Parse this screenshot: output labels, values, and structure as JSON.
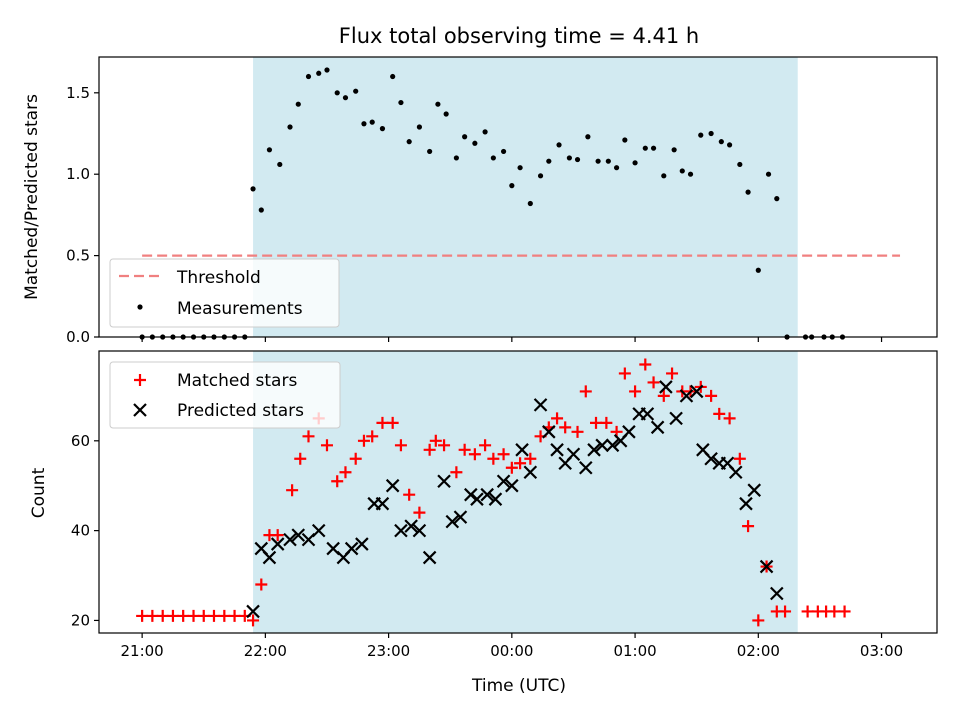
{
  "chart_data": {
    "type": "scatter",
    "title": "Flux total observing time = 4.41 h",
    "xlabel": "Time (UTC)",
    "x_unit": "hours since 21:00 UTC (axis ticks labeled as clock times)",
    "xlim": [
      -0.35,
      6.45
    ],
    "x_ticks": [
      {
        "x": 0,
        "label": "21:00"
      },
      {
        "x": 1,
        "label": "22:00"
      },
      {
        "x": 2,
        "label": "23:00"
      },
      {
        "x": 3,
        "label": "00:00"
      },
      {
        "x": 4,
        "label": "01:00"
      },
      {
        "x": 5,
        "label": "02:00"
      },
      {
        "x": 6,
        "label": "03:00"
      }
    ],
    "shaded_region": {
      "x_start": 0.9,
      "x_end": 5.32,
      "color": "#add8e6"
    },
    "panels": [
      {
        "ylabel": "Matched/Predicted stars",
        "ylim": [
          0,
          1.72
        ],
        "y_ticks": [
          0.0,
          0.5,
          1.0,
          1.5
        ],
        "y_tick_labels": [
          "0.0",
          "0.5",
          "1.0",
          "1.5"
        ],
        "legend": {
          "position": "lower-left",
          "entries": [
            "Threshold",
            "Measurements"
          ]
        },
        "threshold": {
          "name": "Threshold",
          "y": 0.5,
          "x_range": [
            0,
            6.15
          ],
          "color": "#f08080"
        },
        "series": [
          {
            "name": "Measurements",
            "marker": "dot",
            "color": "#000000",
            "points": [
              [
                0,
                0
              ],
              [
                0.083,
                0
              ],
              [
                0.167,
                0
              ],
              [
                0.25,
                0
              ],
              [
                0.333,
                0
              ],
              [
                0.417,
                0
              ],
              [
                0.5,
                0
              ],
              [
                0.583,
                0
              ],
              [
                0.667,
                0
              ],
              [
                0.75,
                0
              ],
              [
                0.833,
                0
              ],
              [
                0.9,
                0.91
              ],
              [
                0.967,
                0.78
              ],
              [
                1.033,
                1.15
              ],
              [
                1.117,
                1.06
              ],
              [
                1.2,
                1.29
              ],
              [
                1.267,
                1.43
              ],
              [
                1.35,
                1.6
              ],
              [
                1.433,
                1.62
              ],
              [
                1.5,
                1.64
              ],
              [
                1.583,
                1.5
              ],
              [
                1.65,
                1.47
              ],
              [
                1.733,
                1.51
              ],
              [
                1.8,
                1.31
              ],
              [
                1.867,
                1.32
              ],
              [
                1.95,
                1.28
              ],
              [
                2.033,
                1.6
              ],
              [
                2.1,
                1.44
              ],
              [
                2.167,
                1.2
              ],
              [
                2.25,
                1.29
              ],
              [
                2.333,
                1.14
              ],
              [
                2.4,
                1.43
              ],
              [
                2.467,
                1.37
              ],
              [
                2.55,
                1.1
              ],
              [
                2.617,
                1.23
              ],
              [
                2.7,
                1.19
              ],
              [
                2.783,
                1.26
              ],
              [
                2.85,
                1.1
              ],
              [
                2.933,
                1.14
              ],
              [
                3.0,
                0.93
              ],
              [
                3.067,
                1.04
              ],
              [
                3.15,
                0.82
              ],
              [
                3.233,
                0.99
              ],
              [
                3.3,
                1.08
              ],
              [
                3.383,
                1.18
              ],
              [
                3.467,
                1.1
              ],
              [
                3.533,
                1.09
              ],
              [
                3.617,
                1.23
              ],
              [
                3.7,
                1.08
              ],
              [
                3.783,
                1.08
              ],
              [
                3.85,
                1.04
              ],
              [
                3.917,
                1.21
              ],
              [
                4.0,
                1.07
              ],
              [
                4.083,
                1.16
              ],
              [
                4.15,
                1.16
              ],
              [
                4.233,
                0.99
              ],
              [
                4.317,
                1.15
              ],
              [
                4.383,
                1.02
              ],
              [
                4.45,
                1.0
              ],
              [
                4.533,
                1.24
              ],
              [
                4.617,
                1.25
              ],
              [
                4.7,
                1.2
              ],
              [
                4.767,
                1.18
              ],
              [
                4.85,
                1.06
              ],
              [
                4.917,
                0.89
              ],
              [
                5.0,
                0.41
              ],
              [
                5.083,
                1.0
              ],
              [
                5.15,
                0.85
              ],
              [
                5.233,
                0
              ],
              [
                5.383,
                0
              ],
              [
                5.433,
                0
              ],
              [
                5.533,
                0
              ],
              [
                5.6,
                0
              ],
              [
                5.683,
                0
              ]
            ]
          }
        ]
      },
      {
        "ylabel": "Count",
        "ylim": [
          17.2,
          80.0
        ],
        "y_ticks": [
          20,
          40,
          60
        ],
        "y_tick_labels": [
          "20",
          "40",
          "60"
        ],
        "legend": {
          "position": "upper-left",
          "entries": [
            "Matched stars",
            "Predicted stars"
          ]
        },
        "series": [
          {
            "name": "Matched stars",
            "marker": "plus",
            "color": "#ff0000",
            "points": [
              [
                0,
                21
              ],
              [
                0.083,
                21
              ],
              [
                0.167,
                21
              ],
              [
                0.25,
                21
              ],
              [
                0.333,
                21
              ],
              [
                0.417,
                21
              ],
              [
                0.5,
                21
              ],
              [
                0.583,
                21
              ],
              [
                0.667,
                21
              ],
              [
                0.75,
                21
              ],
              [
                0.833,
                21
              ],
              [
                0.9,
                20
              ],
              [
                0.967,
                28
              ],
              [
                1.033,
                39
              ],
              [
                1.1,
                39
              ],
              [
                1.217,
                49
              ],
              [
                1.283,
                56
              ],
              [
                1.35,
                61
              ],
              [
                1.433,
                65
              ],
              [
                1.5,
                59
              ],
              [
                1.583,
                51
              ],
              [
                1.65,
                53
              ],
              [
                1.733,
                56
              ],
              [
                1.8,
                60
              ],
              [
                1.867,
                61
              ],
              [
                1.95,
                64
              ],
              [
                2.033,
                64
              ],
              [
                2.1,
                59
              ],
              [
                2.167,
                48
              ],
              [
                2.25,
                44
              ],
              [
                2.333,
                58
              ],
              [
                2.383,
                60
              ],
              [
                2.45,
                59
              ],
              [
                2.55,
                53
              ],
              [
                2.617,
                58
              ],
              [
                2.7,
                57
              ],
              [
                2.783,
                59
              ],
              [
                2.85,
                56
              ],
              [
                2.933,
                57
              ],
              [
                3.0,
                54
              ],
              [
                3.067,
                55
              ],
              [
                3.15,
                56
              ],
              [
                3.233,
                61
              ],
              [
                3.3,
                63
              ],
              [
                3.367,
                65
              ],
              [
                3.433,
                63
              ],
              [
                3.533,
                62
              ],
              [
                3.6,
                71
              ],
              [
                3.683,
                64
              ],
              [
                3.767,
                64
              ],
              [
                3.85,
                62
              ],
              [
                3.917,
                75
              ],
              [
                4.0,
                71
              ],
              [
                4.083,
                77
              ],
              [
                4.15,
                73
              ],
              [
                4.233,
                70
              ],
              [
                4.3,
                75
              ],
              [
                4.383,
                71
              ],
              [
                4.45,
                71
              ],
              [
                4.533,
                72
              ],
              [
                4.617,
                70
              ],
              [
                4.683,
                66
              ],
              [
                4.767,
                65
              ],
              [
                4.85,
                56
              ],
              [
                4.917,
                41
              ],
              [
                5.0,
                20
              ],
              [
                5.067,
                32
              ],
              [
                5.15,
                22
              ],
              [
                5.217,
                22
              ],
              [
                5.4,
                22
              ],
              [
                5.483,
                22
              ],
              [
                5.55,
                22
              ],
              [
                5.617,
                22
              ],
              [
                5.7,
                22
              ]
            ]
          },
          {
            "name": "Predicted stars",
            "marker": "x",
            "color": "#000000",
            "points": [
              [
                0.9,
                22
              ],
              [
                0.967,
                36
              ],
              [
                1.033,
                34
              ],
              [
                1.1,
                37
              ],
              [
                1.2,
                38
              ],
              [
                1.267,
                39
              ],
              [
                1.35,
                38
              ],
              [
                1.433,
                40
              ],
              [
                1.55,
                36
              ],
              [
                1.633,
                34
              ],
              [
                1.7,
                36
              ],
              [
                1.783,
                37
              ],
              [
                1.883,
                46
              ],
              [
                1.95,
                46
              ],
              [
                2.033,
                50
              ],
              [
                2.1,
                40
              ],
              [
                2.183,
                41
              ],
              [
                2.25,
                40
              ],
              [
                2.333,
                34
              ],
              [
                2.45,
                51
              ],
              [
                2.517,
                42
              ],
              [
                2.583,
                43
              ],
              [
                2.667,
                48
              ],
              [
                2.717,
                47
              ],
              [
                2.8,
                48
              ],
              [
                2.867,
                47
              ],
              [
                2.933,
                51
              ],
              [
                3.0,
                50
              ],
              [
                3.083,
                58
              ],
              [
                3.15,
                53
              ],
              [
                3.233,
                68
              ],
              [
                3.3,
                62
              ],
              [
                3.367,
                58
              ],
              [
                3.433,
                55
              ],
              [
                3.5,
                57
              ],
              [
                3.6,
                54
              ],
              [
                3.667,
                58
              ],
              [
                3.733,
                59
              ],
              [
                3.817,
                59
              ],
              [
                3.883,
                60
              ],
              [
                3.95,
                62
              ],
              [
                4.033,
                66
              ],
              [
                4.1,
                66
              ],
              [
                4.183,
                63
              ],
              [
                4.25,
                72
              ],
              [
                4.333,
                65
              ],
              [
                4.417,
                70
              ],
              [
                4.5,
                71
              ],
              [
                4.55,
                58
              ],
              [
                4.617,
                56
              ],
              [
                4.683,
                55
              ],
              [
                4.75,
                55
              ],
              [
                4.817,
                53
              ],
              [
                4.9,
                46
              ],
              [
                4.967,
                49
              ],
              [
                5.067,
                32
              ],
              [
                5.15,
                26
              ]
            ]
          }
        ]
      }
    ]
  }
}
